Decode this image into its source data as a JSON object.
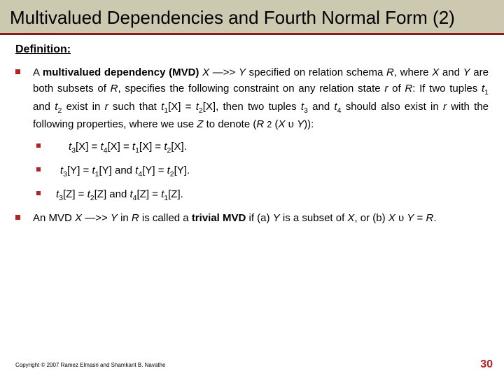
{
  "title": "Multivalued Dependencies and Fourth Normal Form (2)",
  "def_heading": "Definition:",
  "main_para": "A <b>multivalued dependency (MVD)</b> <i>X</i> —>> <i>Y</i> specified on relation schema <i>R</i>, where <i>X</i> and <i>Y</i> are both subsets of <i>R</i>, specifies the following constraint on any relation state <i>r</i> of <i>R</i>: If two tuples <i>t</i><sub>1</sub> and <i>t</i><sub>2</sub> exist in <i>r</i> such that <i>t</i><sub>1</sub>[X] = <i>t</i><sub>2</sub>[X], then two tuples <i>t</i><sub>3</sub> and <i>t</i><sub>4</sub> should also exist in <i>r</i> with the following properties, where we use <i>Z</i> to denote (<i>R</i> <small>2</small> (<i>X</i> υ <i>Y</i>)):",
  "sub1": "<i>t</i><sub>3</sub>[X] = <i>t</i><sub>4</sub>[X] = <i>t</i><sub>1</sub>[X] = <i>t</i><sub>2</sub>[X].",
  "sub2": "<i>t</i><sub>3</sub>[Y] = <i>t</i><sub>1</sub>[Y] and <i>t</i><sub>4</sub>[Y] = <i>t</i><sub>2</sub>[Y].",
  "sub3": "<i>t</i><sub>3</sub>[Z] = <i>t</i><sub>2</sub>[Z] and <i>t</i><sub>4</sub>[Z] = <i>t</i><sub>1</sub>[Z].",
  "trivial": "An MVD <i>X</i> —>> <i>Y</i> in <i>R</i> is called a <b>trivial MVD</b> if (a) <i>Y</i> is a subset of <i>X</i>, or (b) <i>X</i> υ <i>Y</i> = <i>R</i>.",
  "copyright": "Copyright © 2007 Ramez Elmasri and Shamkant B. Navathe",
  "page_number": "30",
  "colors": {
    "title_bg": "#cdc8b0",
    "accent": "#b22222",
    "underline": "#8b1a1a"
  }
}
